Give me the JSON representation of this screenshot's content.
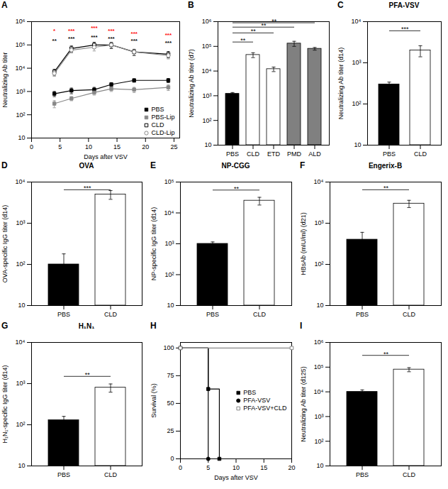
{
  "chart_data": [
    {
      "type": "line",
      "xlabel": "Days after VSV",
      "ylabel": "Neutralizing Ab titer",
      "log": "y",
      "x": [
        4,
        7,
        11,
        14,
        18,
        24
      ],
      "xlim": [
        0,
        26
      ],
      "xticks": [
        0,
        5,
        10,
        15,
        20,
        25
      ],
      "ylim": [
        10,
        1000000
      ],
      "yticks": [
        10,
        {
          "value": 100,
          "label": "10²"
        },
        {
          "value": 1000,
          "label": "10³"
        },
        {
          "value": 10000,
          "label": "10⁴"
        },
        {
          "value": 100000,
          "label": "10⁵"
        },
        {
          "value": 1000000,
          "label": "10⁶"
        }
      ],
      "grid": false,
      "legend": "lower right",
      "series": [
        {
          "name": "PBS",
          "color": "black",
          "marker": "square",
          "values": [
            800,
            1100,
            1200,
            2000,
            3000,
            3000
          ],
          "errors": [
            200,
            300,
            300,
            400,
            500,
            600
          ]
        },
        {
          "name": "PBS-Lip",
          "color": "#888888",
          "marker": "square",
          "values": [
            300,
            500,
            900,
            1300,
            1200,
            1500
          ],
          "errors": [
            100,
            100,
            200,
            300,
            300,
            400
          ]
        },
        {
          "name": "CLD",
          "color": "black",
          "marker": "square_open",
          "values": [
            7000,
            70000,
            100000,
            100000,
            50000,
            40000
          ],
          "errors": [
            2000,
            20000,
            30000,
            30000,
            15000,
            12000
          ]
        },
        {
          "name": "CLD-Lip",
          "color": "#888888",
          "marker": "circle_open",
          "values": [
            6000,
            60000,
            80000,
            100000,
            50000,
            35000
          ],
          "errors": [
            1500,
            15000,
            25000,
            25000,
            12000,
            10000
          ]
        }
      ],
      "annotations": [
        {
          "text": "A"
        },
        {
          "x": 4,
          "y": 400000,
          "text": "*",
          "color": "red"
        },
        {
          "x": 4,
          "y": 150000,
          "text": "**",
          "color": "black"
        },
        {
          "x": 7,
          "y": 400000,
          "text": "***",
          "color": "red"
        },
        {
          "x": 7,
          "y": 180000,
          "text": "***",
          "color": "black"
        },
        {
          "x": 11,
          "y": 500000,
          "text": "***",
          "color": "red"
        },
        {
          "x": 11,
          "y": 200000,
          "text": "***",
          "color": "black"
        },
        {
          "x": 14,
          "y": 400000,
          "text": "***",
          "color": "red"
        },
        {
          "x": 14,
          "y": 180000,
          "text": "***",
          "color": "black"
        },
        {
          "x": 18,
          "y": 300000,
          "text": "***",
          "color": "red"
        },
        {
          "x": 18,
          "y": 150000,
          "text": "***",
          "color": "black"
        },
        {
          "x": 24,
          "y": 250000,
          "text": "***",
          "color": "red"
        },
        {
          "x": 24,
          "y": 120000,
          "text": "***",
          "color": "black"
        }
      ]
    },
    {
      "type": "bar",
      "ylabel": "Neutralizing Ab titer (d7)",
      "log": "y",
      "categories": [
        "PBS",
        "CLD",
        "ETD",
        "PMD",
        "ALD"
      ],
      "values": [
        1200,
        45000,
        12000,
        130000,
        80000
      ],
      "errors": [
        150,
        10000,
        2500,
        30000,
        10000
      ],
      "colors": [
        "black",
        "white",
        "white",
        "gray",
        "gray"
      ],
      "ylim": [
        10,
        1000000
      ],
      "yticks": [
        10,
        {
          "value": 100,
          "label": "10²"
        },
        {
          "value": 1000,
          "label": "10³"
        },
        {
          "value": 10000,
          "label": "10⁴"
        },
        {
          "value": 100000,
          "label": "10⁵"
        },
        {
          "value": 1000000,
          "label": "10⁶"
        }
      ],
      "grid": false,
      "annotations": [
        {
          "text": "B"
        },
        {
          "x": [
            "PBS",
            "CLD"
          ],
          "y": 150000,
          "text": "**"
        },
        {
          "x": [
            "PBS",
            "ETD"
          ],
          "y": 350000,
          "text": "**"
        },
        {
          "x": [
            "PBS",
            "PMD"
          ],
          "y": 600000,
          "text": "**"
        },
        {
          "x": [
            "PBS",
            "ALD"
          ],
          "y": 900000,
          "text": "**"
        }
      ]
    },
    {
      "type": "bar",
      "title": "PFA-VSV",
      "ylabel": "Neutralizing Ab titer (d14)",
      "log": "y",
      "categories": [
        "PBS",
        "CLD"
      ],
      "values": [
        300,
        2000
      ],
      "errors": [
        40,
        600
      ],
      "colors": [
        "black",
        "white"
      ],
      "ylim": [
        10,
        10000
      ],
      "yticks": [
        10,
        {
          "value": 100,
          "label": "10²"
        },
        {
          "value": 1000,
          "label": "10³"
        },
        {
          "value": 10000,
          "label": "10⁴"
        }
      ],
      "grid": false,
      "annotations": [
        {
          "text": "C"
        },
        {
          "x": [
            "PBS",
            "CLD"
          ],
          "y": 6000,
          "text": "***"
        }
      ]
    },
    {
      "type": "bar",
      "title": "OVA",
      "ylabel": "OVA-specific IgG titer (d14)",
      "log": "y",
      "categories": [
        "PBS",
        "CLD"
      ],
      "values": [
        100,
        5000
      ],
      "errors": [
        80,
        1200
      ],
      "colors": [
        "black",
        "white"
      ],
      "ylim": [
        10,
        10000
      ],
      "yticks": [
        10,
        {
          "value": 100,
          "label": "10²"
        },
        {
          "value": 1000,
          "label": "10³"
        },
        {
          "value": 10000,
          "label": "10⁴"
        }
      ],
      "grid": false,
      "annotations": [
        {
          "text": "D"
        },
        {
          "x": [
            "PBS",
            "CLD"
          ],
          "y": 6500,
          "text": "***"
        }
      ]
    },
    {
      "type": "bar",
      "title": "NP-CGG",
      "ylabel": "NP-specific IgG titer (d14)",
      "log": "y",
      "categories": [
        "PBS",
        "CLD"
      ],
      "values": [
        1000,
        25000
      ],
      "errors": [
        150,
        7000
      ],
      "colors": [
        "black",
        "white"
      ],
      "ylim": [
        10,
        100000
      ],
      "yticks": [
        10,
        {
          "value": 100,
          "label": "10²"
        },
        {
          "value": 1000,
          "label": "10³"
        },
        {
          "value": 10000,
          "label": "10⁴"
        },
        {
          "value": 100000,
          "label": "10⁵"
        }
      ],
      "grid": false,
      "annotations": [
        {
          "text": "E"
        },
        {
          "x": [
            "PBS",
            "CLD"
          ],
          "y": 55000,
          "text": "**"
        }
      ]
    },
    {
      "type": "bar",
      "title": "Engerix-B",
      "ylabel": "HBsAb (mIU/ml) (d21)",
      "log": "y",
      "categories": [
        "PBS",
        "CLD"
      ],
      "values": [
        400,
        3000
      ],
      "errors": [
        200,
        600
      ],
      "colors": [
        "black",
        "white"
      ],
      "ylim": [
        10,
        10000
      ],
      "yticks": [
        10,
        {
          "value": 100,
          "label": "10²"
        },
        {
          "value": 1000,
          "label": "10³"
        },
        {
          "value": 10000,
          "label": "10⁴"
        }
      ],
      "grid": false,
      "annotations": [
        {
          "text": "F"
        },
        {
          "x": [
            "PBS",
            "CLD"
          ],
          "y": 6500,
          "text": "**"
        }
      ]
    },
    {
      "type": "bar",
      "title": "H₁N₁",
      "ylabel": "H₁N₁-specific IgG titer (d14)",
      "log": "y",
      "categories": [
        "PBS",
        "CLD"
      ],
      "values": [
        130,
        800
      ],
      "errors": [
        30,
        180
      ],
      "colors": [
        "black",
        "white"
      ],
      "ylim": [
        10,
        10000
      ],
      "yticks": [
        10,
        {
          "value": 100,
          "label": "10²"
        },
        {
          "value": 1000,
          "label": "10³"
        },
        {
          "value": 10000,
          "label": "10⁴"
        }
      ],
      "grid": false,
      "annotations": [
        {
          "text": "G"
        },
        {
          "x": [
            "PBS",
            "CLD"
          ],
          "y": 1500,
          "text": "**"
        }
      ]
    },
    {
      "type": "line",
      "xlabel": "Days after VSV",
      "ylabel": "Survival (%)",
      "xlim": [
        0,
        20
      ],
      "xticks": [
        0,
        5,
        10,
        15,
        20
      ],
      "ylim": [
        0,
        105
      ],
      "yticks": [
        0,
        25,
        50,
        75,
        100
      ],
      "grid": false,
      "legend": "center right",
      "series": [
        {
          "name": "PBS",
          "color": "black",
          "marker": "square",
          "x": [
            0,
            5,
            5,
            7,
            7,
            20
          ],
          "values": [
            100,
            100,
            63,
            63,
            0,
            0
          ],
          "marker_x": [
            0,
            5,
            7
          ],
          "marker_values": [
            100,
            63,
            0
          ]
        },
        {
          "name": "PFA-VSV",
          "color": "black",
          "marker": "circle",
          "x": [
            0,
            5,
            5,
            20
          ],
          "values": [
            100,
            100,
            0,
            0
          ],
          "marker_x": [
            0,
            5
          ],
          "marker_values": [
            100,
            0
          ]
        },
        {
          "name": "PFA-VSV+CLD",
          "color": "#888888",
          "marker": "square_open",
          "x": [
            0,
            20
          ],
          "values": [
            100,
            100
          ],
          "marker_x": [
            0,
            20
          ],
          "marker_values": [
            100,
            100
          ]
        }
      ],
      "annotations": [
        {
          "text": "H"
        }
      ]
    },
    {
      "type": "bar",
      "ylabel": "Neutralizing Ab titer (d125)",
      "log": "y",
      "categories": [
        "PBS",
        "CLD"
      ],
      "values": [
        10000,
        80000
      ],
      "errors": [
        2000,
        15000
      ],
      "colors": [
        "black",
        "white"
      ],
      "ylim": [
        10,
        1000000
      ],
      "yticks": [
        10,
        {
          "value": 100,
          "label": "10²"
        },
        {
          "value": 1000,
          "label": "10³"
        },
        {
          "value": 10000,
          "label": "10⁴"
        },
        {
          "value": 100000,
          "label": "10⁵"
        },
        {
          "value": 1000000,
          "label": "10⁶"
        }
      ],
      "grid": false,
      "annotations": [
        {
          "text": "I"
        },
        {
          "x": [
            "PBS",
            "CLD"
          ],
          "y": 300000,
          "text": "**"
        }
      ]
    }
  ]
}
